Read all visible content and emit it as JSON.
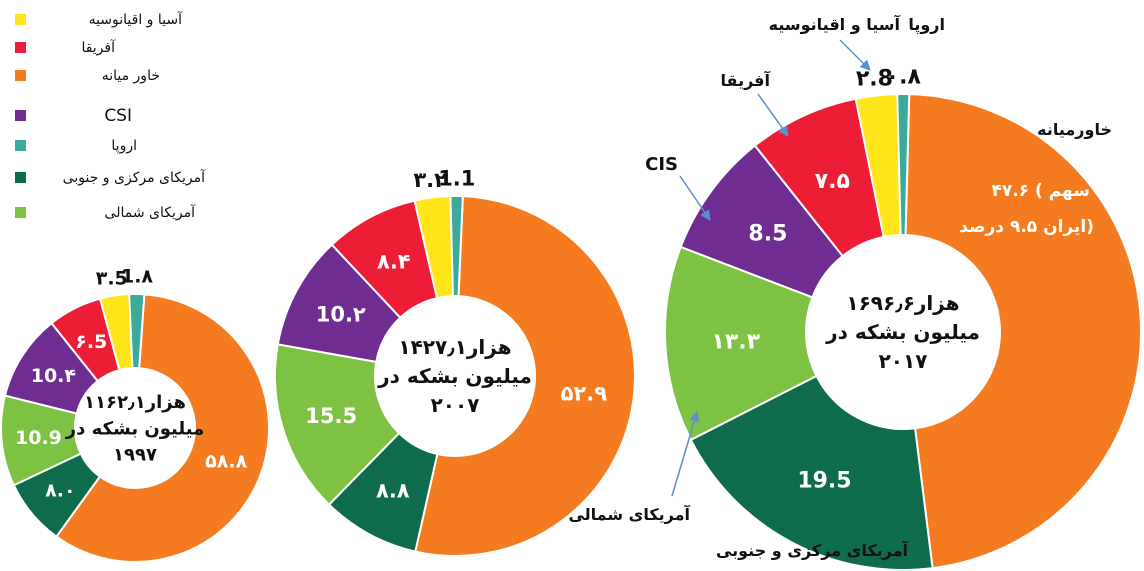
{
  "legend": {
    "items": [
      {
        "label": "آسیا و اقیانوسیه",
        "color": "#FFE51A"
      },
      {
        "label": "آفریقا",
        "color": "#EE1D36"
      },
      {
        "label": "خاور میانه",
        "color": "#F47B20"
      },
      {
        "label": "CSI",
        "color": "#6F2C91"
      },
      {
        "label": "اروپا",
        "color": "#3AAA9A"
      },
      {
        "label": "آمریکای مرکزی و جنوبی",
        "color": "#0E6B4B"
      },
      {
        "label": "آمریکای شمالی",
        "color": "#7DC242"
      }
    ]
  },
  "annotations": {
    "europe": "اروپا",
    "asia": "آسیا و اقیانوسیه",
    "africa": "آفریقا",
    "cis": "CIS",
    "middle_east": "خاورمیانه",
    "north_america": "آمریکای شمالی",
    "central_south_america": "آمریکای مرکزی و جنوبی",
    "iran_note_1": "۴۷.۶ ( سهم",
    "iran_note_2": "ایران ۹.۵ درصد)"
  },
  "chart_data": [
    {
      "type": "pie",
      "variant": "donut",
      "year_label": "1997",
      "center_lines": [
        "۱۱۶۲٫۱هزار",
        "میلیون بشکه در",
        "۱۹۹۷"
      ],
      "slices": [
        {
          "region": "خاور میانه",
          "value": 58.8,
          "label": "۵۸.۸",
          "color": "#F47B20"
        },
        {
          "region": "آمریکای مرکزی و جنوبی",
          "value": 8.0,
          "label": "۸.۰",
          "color": "#0E6B4B"
        },
        {
          "region": "آمریکای شمالی",
          "value": 10.9,
          "label": "10.9",
          "color": "#7DC242"
        },
        {
          "region": "CSI",
          "value": 10.4,
          "label": "10.۴",
          "color": "#6F2C91"
        },
        {
          "region": "آفریقا",
          "value": 6.5,
          "label": "۶.5",
          "color": "#EE1D36"
        },
        {
          "region": "آسیا و اقیانوسیه",
          "value": 3.5,
          "label": "۳.5",
          "color": "#FFE51A"
        },
        {
          "region": "اروپا",
          "value": 1.8,
          "label": "1.۸",
          "color": "#3AAA9A"
        }
      ]
    },
    {
      "type": "pie",
      "variant": "donut",
      "year_label": "2007",
      "center_lines": [
        "۱۴۲۷٫۱هزار",
        "میلیون بشکه در",
        "۲۰۰۷"
      ],
      "slices": [
        {
          "region": "خاور میانه",
          "value": 52.9,
          "label": "۵۲.۹",
          "color": "#F47B20"
        },
        {
          "region": "آمریکای مرکزی و جنوبی",
          "value": 8.8,
          "label": "۸.۸",
          "color": "#0E6B4B"
        },
        {
          "region": "آمریکای شمالی",
          "value": 15.5,
          "label": "15.5",
          "color": "#7DC242"
        },
        {
          "region": "CSI",
          "value": 10.2,
          "label": "10.۲",
          "color": "#6F2C91"
        },
        {
          "region": "آفریقا",
          "value": 8.4,
          "label": "۸.۴",
          "color": "#EE1D36"
        },
        {
          "region": "آسیا و اقیانوسیه",
          "value": 3.2,
          "label": "۳.۲",
          "color": "#FFE51A"
        },
        {
          "region": "اروپا",
          "value": 1.1,
          "label": "1.1",
          "color": "#3AAA9A"
        }
      ]
    },
    {
      "type": "pie",
      "variant": "donut",
      "year_label": "2017",
      "center_lines": [
        "۱۶۹۶٫۶هزار",
        "میلیون بشکه در",
        "۲۰۱۷"
      ],
      "slices": [
        {
          "region": "خاور میانه",
          "value": 47.6,
          "label": "",
          "color": "#F47B20"
        },
        {
          "region": "آمریکای مرکزی و جنوبی",
          "value": 19.5,
          "label": "19.5",
          "color": "#0E6B4B"
        },
        {
          "region": "آمریکای شمالی",
          "value": 13.3,
          "label": "۱۳.۳",
          "color": "#7DC242"
        },
        {
          "region": "CIS",
          "value": 8.5,
          "label": "8.5",
          "color": "#6F2C91"
        },
        {
          "region": "آفریقا",
          "value": 7.5,
          "label": "۷.۵",
          "color": "#EE1D36"
        },
        {
          "region": "آسیا و اقیانوسیه",
          "value": 2.8,
          "label": "۲.8",
          "color": "#FFE51A"
        },
        {
          "region": "اروپا",
          "value": 0.8,
          "label": "۰.۸",
          "color": "#3AAA9A"
        }
      ]
    }
  ]
}
